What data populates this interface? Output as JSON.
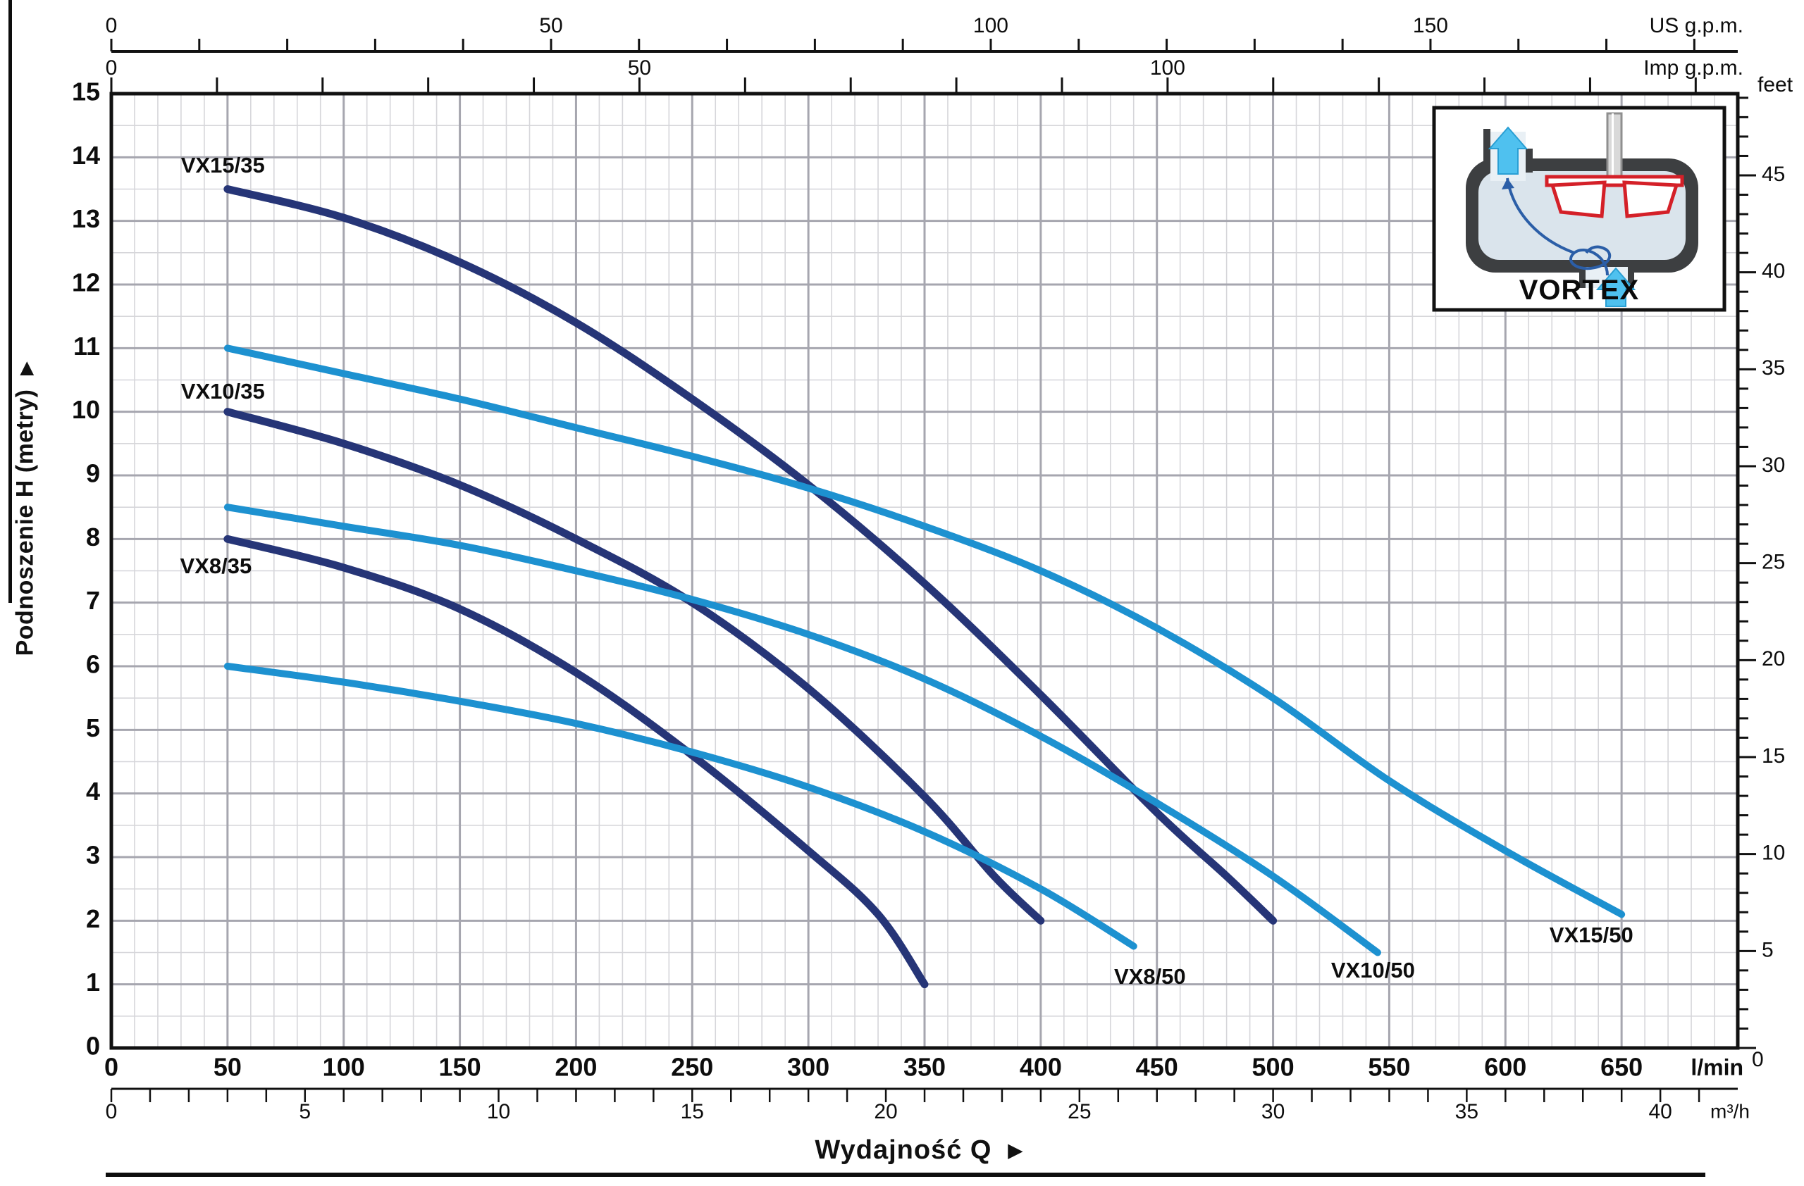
{
  "inset": {
    "label": "VORTEX"
  },
  "axes": {
    "metry": {
      "title": "Podnoszenie H (metry)",
      "arrow": "▶",
      "ticks": [
        0,
        1,
        2,
        3,
        4,
        5,
        6,
        7,
        8,
        9,
        10,
        11,
        12,
        13,
        14,
        15
      ]
    },
    "feet": {
      "label": "feet",
      "labeled_ticks": [
        0,
        5,
        10,
        15,
        20,
        25,
        30,
        35,
        40,
        45
      ],
      "minor_step_ft": 1,
      "max_ft": 49
    },
    "lmin": {
      "label": "l/min",
      "labeled_ticks": [
        0,
        50,
        100,
        150,
        200,
        250,
        300,
        350,
        400,
        450,
        500,
        550,
        600,
        650
      ]
    },
    "m3h": {
      "label": "m³/h",
      "labeled_ticks": [
        0,
        5,
        10,
        15,
        20,
        25,
        30,
        35,
        40
      ],
      "minor_step": 1,
      "max": 41,
      "lmin_per_unit": 16.667
    },
    "us_gpm": {
      "label": "US g.p.m.",
      "labeled_ticks": [
        0,
        50,
        100,
        150
      ],
      "minor_step": 10,
      "max": 180,
      "lmin_per_unit": 3.785
    },
    "imp_gpm": {
      "label": "Imp g.p.m.",
      "labeled_ticks": [
        0,
        50,
        100
      ],
      "minor_step": 10,
      "max": 150,
      "lmin_per_unit": 4.546
    },
    "flow_title": "Wydajność Q",
    "flow_arrow": "▶"
  },
  "chart_data": {
    "type": "line",
    "xlabel": "Wydajność Q",
    "ylabel": "Podnoszenie H (metry)",
    "x_unit": "l/min",
    "y_unit": "m",
    "xlim": [
      0,
      700
    ],
    "ylim": [
      0,
      15
    ],
    "grid": {
      "minor_x_lmin": 10,
      "major_x_lmin": 50,
      "minor_y_m": 0.5,
      "major_y_m": 1
    },
    "colors": {
      "dark_navy": "#263577",
      "light_blue": "#1d91d0",
      "grid_minor": "#d6d6da",
      "grid_major": "#a6a6af",
      "border": "#111111"
    },
    "series": [
      {
        "name": "VX15/35",
        "color": "#263577",
        "width": 11,
        "points": [
          [
            50,
            13.5
          ],
          [
            100,
            13.05
          ],
          [
            150,
            12.35
          ],
          [
            200,
            11.4
          ],
          [
            250,
            10.2
          ],
          [
            300,
            8.85
          ],
          [
            350,
            7.3
          ],
          [
            400,
            5.55
          ],
          [
            450,
            3.7
          ],
          [
            480,
            2.7
          ],
          [
            500,
            2.0
          ]
        ],
        "label_at": {
          "q": 48,
          "h": 13.85
        }
      },
      {
        "name": "VX10/35",
        "color": "#263577",
        "width": 11,
        "points": [
          [
            50,
            10.0
          ],
          [
            100,
            9.5
          ],
          [
            150,
            8.85
          ],
          [
            200,
            8.0
          ],
          [
            250,
            7.0
          ],
          [
            300,
            5.65
          ],
          [
            350,
            3.95
          ],
          [
            380,
            2.7
          ],
          [
            400,
            2.0
          ]
        ],
        "label_at": {
          "q": 48,
          "h": 10.3
        }
      },
      {
        "name": "VX8/35",
        "color": "#263577",
        "width": 11,
        "points": [
          [
            50,
            8.0
          ],
          [
            100,
            7.55
          ],
          [
            150,
            6.9
          ],
          [
            200,
            5.9
          ],
          [
            250,
            4.6
          ],
          [
            300,
            3.1
          ],
          [
            330,
            2.1
          ],
          [
            350,
            1.0
          ]
        ],
        "label_at": {
          "q": 45,
          "h": 7.55
        }
      },
      {
        "name": "VX15/50",
        "color": "#1d91d0",
        "width": 10,
        "points": [
          [
            50,
            11.0
          ],
          [
            100,
            10.6
          ],
          [
            150,
            10.2
          ],
          [
            200,
            9.75
          ],
          [
            250,
            9.3
          ],
          [
            300,
            8.8
          ],
          [
            350,
            8.2
          ],
          [
            400,
            7.5
          ],
          [
            450,
            6.6
          ],
          [
            500,
            5.5
          ],
          [
            550,
            4.2
          ],
          [
            600,
            3.1
          ],
          [
            650,
            2.1
          ]
        ],
        "label_at": {
          "q": 637,
          "h": 1.75
        }
      },
      {
        "name": "VX10/50",
        "color": "#1d91d0",
        "width": 10,
        "points": [
          [
            50,
            8.5
          ],
          [
            100,
            8.2
          ],
          [
            150,
            7.9
          ],
          [
            200,
            7.5
          ],
          [
            250,
            7.05
          ],
          [
            300,
            6.5
          ],
          [
            350,
            5.8
          ],
          [
            400,
            4.9
          ],
          [
            450,
            3.85
          ],
          [
            500,
            2.7
          ],
          [
            545,
            1.5
          ]
        ],
        "label_at": {
          "q": 543,
          "h": 1.2
        }
      },
      {
        "name": "VX8/50",
        "color": "#1d91d0",
        "width": 10,
        "points": [
          [
            50,
            6.0
          ],
          [
            100,
            5.75
          ],
          [
            150,
            5.45
          ],
          [
            200,
            5.1
          ],
          [
            250,
            4.65
          ],
          [
            300,
            4.1
          ],
          [
            350,
            3.4
          ],
          [
            400,
            2.5
          ],
          [
            440,
            1.6
          ]
        ],
        "label_at": {
          "q": 447,
          "h": 1.1
        }
      }
    ]
  }
}
